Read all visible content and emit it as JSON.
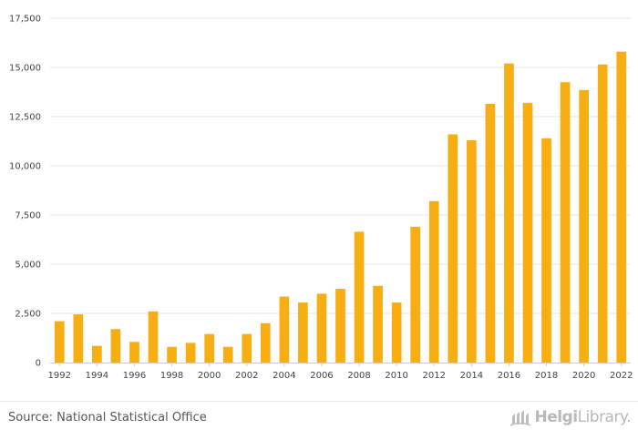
{
  "chart_data": {
    "type": "bar",
    "categories": [
      "1992",
      "1993",
      "1994",
      "1995",
      "1996",
      "1997",
      "1998",
      "1999",
      "2000",
      "2001",
      "2002",
      "2003",
      "2004",
      "2005",
      "2006",
      "2007",
      "2008",
      "2009",
      "2010",
      "2011",
      "2012",
      "2013",
      "2014",
      "2015",
      "2016",
      "2017",
      "2018",
      "2019",
      "2020",
      "2021",
      "2022"
    ],
    "values": [
      2100,
      2450,
      850,
      1700,
      1050,
      2600,
      800,
      1000,
      1450,
      800,
      1450,
      2000,
      3350,
      3050,
      3500,
      3750,
      6650,
      3900,
      3050,
      6900,
      8200,
      11600,
      11300,
      13150,
      15200,
      13200,
      11400,
      14250,
      13850,
      15150,
      15800
    ],
    "x_tick_labels": [
      "1992",
      "1994",
      "1996",
      "1998",
      "2000",
      "2002",
      "2004",
      "2006",
      "2008",
      "2010",
      "2012",
      "2014",
      "2016",
      "2018",
      "2020",
      "2022"
    ],
    "y_ticks": [
      0,
      2500,
      5000,
      7500,
      10000,
      12500,
      15000,
      17500
    ],
    "y_tick_labels": [
      "0",
      "2,500",
      "5,000",
      "7,500",
      "10,000",
      "12,500",
      "15,000",
      "17,500"
    ],
    "ylim": [
      0,
      17500
    ],
    "title": "",
    "xlabel": "",
    "ylabel": "",
    "grid": true,
    "bar_color": "#f6ae12"
  },
  "footer": {
    "source": "Source: National Statistical Office",
    "logo_word_bold": "Helgi",
    "logo_word_light": "Library."
  },
  "icons": {
    "logo": "helgi-library-logo-icon"
  }
}
